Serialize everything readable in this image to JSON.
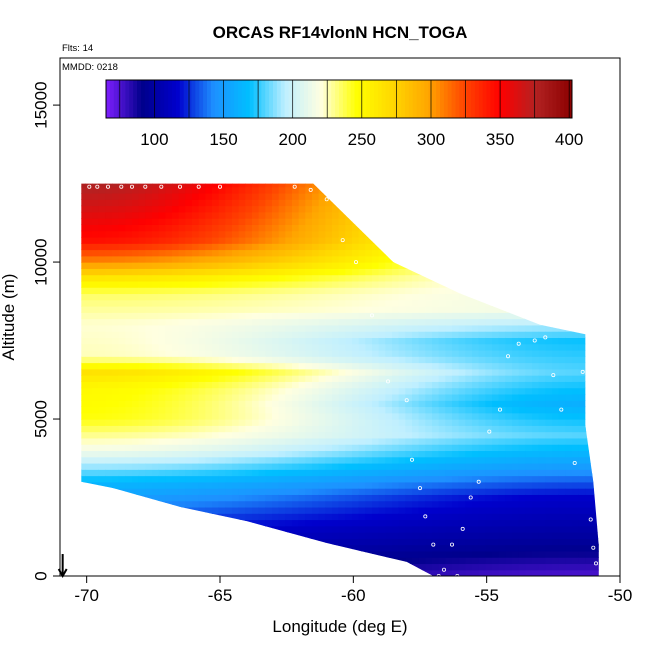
{
  "chart_data": {
    "type": "heatmap",
    "title": "ORCAS RF14vlonN HCN_TOGA",
    "annotations": {
      "flights": "Flts: 14",
      "date": "MMDD: 0218"
    },
    "xlabel": "Longitude (deg E)",
    "ylabel": "Altitude (m)",
    "xlim": [
      -71,
      -50
    ],
    "ylim": [
      0,
      16500
    ],
    "x_ticks": [
      -70,
      -65,
      -60,
      -55,
      -50
    ],
    "x_tick_labels": [
      "-70",
      "-65",
      "-60",
      "-55",
      "-50"
    ],
    "y_ticks": [
      0,
      5000,
      10000,
      15000
    ],
    "y_tick_labels": [
      "0",
      "5000",
      "10000",
      "15000"
    ],
    "colorbar": {
      "range": [
        65,
        402
      ],
      "ticks": [
        100,
        150,
        200,
        250,
        300,
        350,
        400
      ],
      "tick_labels": [
        "100",
        "150",
        "200",
        "250",
        "300",
        "350",
        "400"
      ],
      "colors": [
        "#7f1fff",
        "#00008b",
        "#0000cd",
        "#1e90ff",
        "#00bfff",
        "#bfefff",
        "#ffffe0",
        "#ffff00",
        "#ffd700",
        "#ffa500",
        "#ff4500",
        "#ff0000",
        "#b22222",
        "#8b0000"
      ]
    },
    "grid": false,
    "legend": "colorbar-top",
    "hcn_profile_west": [
      {
        "alt": 0,
        "value": 95
      },
      {
        "alt": 1500,
        "value": 120
      },
      {
        "alt": 3000,
        "value": 165
      },
      {
        "alt": 4000,
        "value": 215
      },
      {
        "alt": 5000,
        "value": 245
      },
      {
        "alt": 6000,
        "value": 250
      },
      {
        "alt": 6500,
        "value": 265
      },
      {
        "alt": 7000,
        "value": 225
      },
      {
        "alt": 8000,
        "value": 222
      },
      {
        "alt": 9000,
        "value": 235
      },
      {
        "alt": 9500,
        "value": 262
      },
      {
        "alt": 10000,
        "value": 305
      },
      {
        "alt": 10700,
        "value": 345
      },
      {
        "alt": 11500,
        "value": 360
      },
      {
        "alt": 12500,
        "value": 378
      }
    ],
    "hcn_profile_east": [
      {
        "alt": 0,
        "value": 75
      },
      {
        "alt": 1000,
        "value": 95
      },
      {
        "alt": 2500,
        "value": 115
      },
      {
        "alt": 3500,
        "value": 150
      },
      {
        "alt": 4500,
        "value": 180
      },
      {
        "alt": 5500,
        "value": 160
      },
      {
        "alt": 6500,
        "value": 180
      },
      {
        "alt": 7500,
        "value": 170
      },
      {
        "alt": 8500,
        "value": 215
      }
    ],
    "coverage": {
      "bottom_edge": [
        [
          -70.2,
          3000
        ],
        [
          -69,
          2800
        ],
        [
          -66.5,
          2200
        ],
        [
          -64,
          1750
        ],
        [
          -61,
          1050
        ],
        [
          -58,
          450
        ],
        [
          -57,
          0
        ],
        [
          -51,
          0
        ]
      ],
      "top_edge": [
        [
          -70.2,
          12500
        ],
        [
          -61.5,
          12500
        ],
        [
          -58.5,
          10000
        ],
        [
          -56,
          9000
        ],
        [
          -53,
          8000
        ],
        [
          -51.3,
          7700
        ]
      ],
      "east_edge": [
        [
          -51.3,
          7700
        ],
        [
          -51.3,
          4800
        ],
        [
          -51,
          3000
        ],
        [
          -50.8,
          1000
        ],
        [
          -50.8,
          0
        ]
      ]
    },
    "sample_points": [
      {
        "x": -69.9,
        "y": 12400
      },
      {
        "x": -69.6,
        "y": 12400
      },
      {
        "x": -69.2,
        "y": 12400
      },
      {
        "x": -68.7,
        "y": 12400
      },
      {
        "x": -68.3,
        "y": 12400
      },
      {
        "x": -67.8,
        "y": 12400
      },
      {
        "x": -67.2,
        "y": 12400
      },
      {
        "x": -66.5,
        "y": 12400
      },
      {
        "x": -65.8,
        "y": 12400
      },
      {
        "x": -65.0,
        "y": 12400
      },
      {
        "x": -62.2,
        "y": 12400
      },
      {
        "x": -61.6,
        "y": 12300
      },
      {
        "x": -61.0,
        "y": 12000
      },
      {
        "x": -60.4,
        "y": 10700
      },
      {
        "x": -59.9,
        "y": 10000
      },
      {
        "x": -59.3,
        "y": 8300
      },
      {
        "x": -58.7,
        "y": 6200
      },
      {
        "x": -58.0,
        "y": 5600
      },
      {
        "x": -57.8,
        "y": 3700
      },
      {
        "x": -57.5,
        "y": 2800
      },
      {
        "x": -57.3,
        "y": 1900
      },
      {
        "x": -57.0,
        "y": 1000
      },
      {
        "x": -56.6,
        "y": 200
      },
      {
        "x": -56.3,
        "y": 1000
      },
      {
        "x": -55.9,
        "y": 1500
      },
      {
        "x": -55.6,
        "y": 2500
      },
      {
        "x": -55.3,
        "y": 3000
      },
      {
        "x": -54.9,
        "y": 4600
      },
      {
        "x": -54.5,
        "y": 5300
      },
      {
        "x": -54.2,
        "y": 7000
      },
      {
        "x": -53.8,
        "y": 7400
      },
      {
        "x": -53.2,
        "y": 7500
      },
      {
        "x": -52.8,
        "y": 7600
      },
      {
        "x": -52.5,
        "y": 6400
      },
      {
        "x": -52.2,
        "y": 5300
      },
      {
        "x": -51.7,
        "y": 3600
      },
      {
        "x": -51.4,
        "y": 6500
      },
      {
        "x": -51.1,
        "y": 1800
      },
      {
        "x": -51.0,
        "y": 900
      },
      {
        "x": -50.9,
        "y": 400
      },
      {
        "x": -56.8,
        "y": 0
      },
      {
        "x": -56.1,
        "y": 0
      }
    ],
    "start_arrow": {
      "x": -70.9,
      "y": 700
    }
  }
}
